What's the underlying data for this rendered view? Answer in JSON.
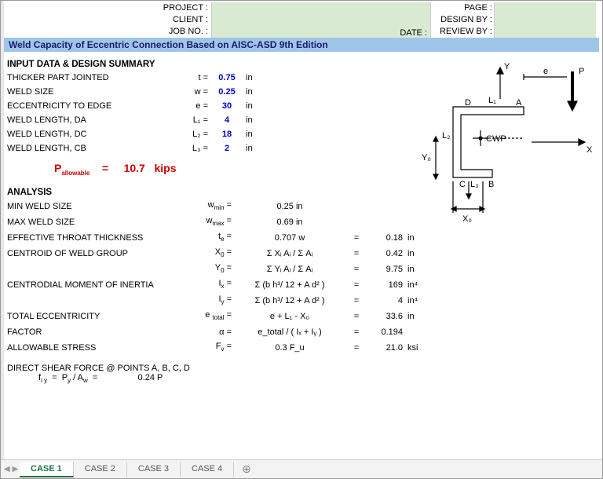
{
  "header": {
    "project_label": "PROJECT :",
    "client_label": "CLIENT :",
    "jobno_label": "JOB NO. :",
    "date_label": "DATE :",
    "page_label": "PAGE :",
    "designby_label": "DESIGN BY :",
    "reviewby_label": "REVIEW BY :"
  },
  "title": "Weld Capacity of Eccentric Connection Based on AISC-ASD 9th Edition",
  "input_section": "INPUT DATA & DESIGN SUMMARY",
  "inputs": [
    {
      "label": "THICKER PART JOINTED",
      "sym": "t  =",
      "val": "0.75",
      "unit": "in"
    },
    {
      "label": "WELD SIZE",
      "sym": "w =",
      "val": "0.25",
      "unit": "in"
    },
    {
      "label": "ECCENTRICITY TO EDGE",
      "sym": "e  =",
      "val": "30",
      "unit": "in"
    },
    {
      "label": "WELD LENGTH, DA",
      "sym": "L₁ =",
      "val": "4",
      "unit": "in"
    },
    {
      "label": "WELD LENGTH, DC",
      "sym": "L₂ =",
      "val": "18",
      "unit": "in"
    },
    {
      "label": "WELD LENGTH, CB",
      "sym": "L₃ =",
      "val": "2",
      "unit": "in"
    }
  ],
  "pallow": {
    "label": "Pallowable",
    "eq": "=",
    "val": "10.7",
    "unit": "kips"
  },
  "analysis_section": "ANALYSIS",
  "analysis": [
    {
      "label": "MIN WELD SIZE",
      "sym": "w_min =",
      "form": "0.25  in",
      "eq": "",
      "val": "",
      "unit": ""
    },
    {
      "label": "MAX WELD SIZE",
      "sym": "w_max =",
      "form": "0.69  in",
      "eq": "",
      "val": "",
      "unit": ""
    },
    {
      "label": "EFFECTIVE THROAT THICKNESS",
      "sym": "t_e =",
      "form": "0.707 w",
      "eq": "=",
      "val": "0.18",
      "unit": "in"
    },
    {
      "label": "CENTROID OF WELD GROUP",
      "sym": "X_0 =",
      "form": "Σ Xᵢ Aᵢ / Σ Aᵢ",
      "eq": "=",
      "val": "0.42",
      "unit": "in"
    },
    {
      "label": "",
      "sym": "Y_0 =",
      "form": "Σ Yᵢ Aᵢ / Σ Aᵢ",
      "eq": "=",
      "val": "9.75",
      "unit": "in"
    },
    {
      "label": "CENTRODIAL MOMENT OF INERTIA",
      "sym": "I_x =",
      "form": "Σ (b h³/ 12 + A d² )",
      "eq": "=",
      "val": "169",
      "unit": "in⁴"
    },
    {
      "label": "",
      "sym": "I_y =",
      "form": "Σ (b h³/ 12 + A d² )",
      "eq": "=",
      "val": "4",
      "unit": "in⁴"
    },
    {
      "label": "TOTAL ECCENTRICITY",
      "sym": "e_total =",
      "form": "e + L₁ - X₀",
      "eq": "=",
      "val": "33.6",
      "unit": "in"
    },
    {
      "label": "FACTOR",
      "sym": "α =",
      "form": "e_total / ( Iₓ + Iᵧ )",
      "eq": "=",
      "val": "0.194",
      "unit": ""
    },
    {
      "label": "ALLOWABLE STRESS",
      "sym": "F_v =",
      "form": "0.3 F_u",
      "eq": "=",
      "val": "21.0",
      "unit": "ksi"
    }
  ],
  "shear": {
    "title": "DIRECT SHEAR FORCE @ POINTS A, B, C, D",
    "formula": "f_i y   =  P_y / A_w   =",
    "val": "0.24 P"
  },
  "tabs": [
    "CASE 1",
    "CASE 2",
    "CASE 3",
    "CASE 4"
  ],
  "diagram": {
    "labels": {
      "Y": "Y",
      "X": "X",
      "P": "P",
      "e": "e",
      "D": "D",
      "A": "A",
      "C": "C",
      "B": "B",
      "L1": "L₁",
      "L2": "L₂",
      "L3": "L₃",
      "CWP": "CWP",
      "Y0": "Y₀",
      "X0": "X₀"
    },
    "stroke": "#000",
    "fill": "none"
  }
}
